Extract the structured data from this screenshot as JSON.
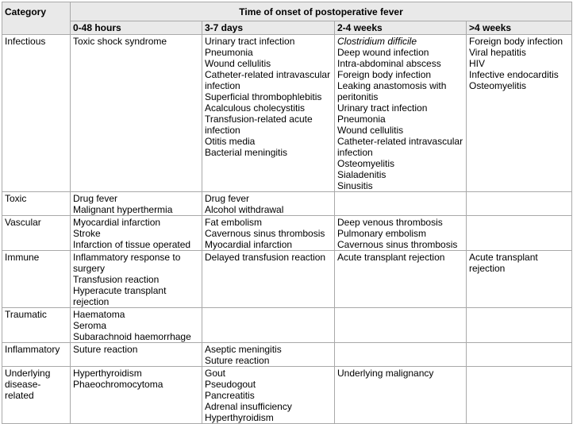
{
  "colors": {
    "header_background": "#e9e9e9",
    "border": "#a9a9a9",
    "body_background": "#ffffff",
    "text": "#000000"
  },
  "table": {
    "category_header": "Category",
    "title": "Time of onset of postoperative fever",
    "time_columns": [
      "0-48 hours",
      "3-7 days",
      "2-4 weeks",
      ">4 weeks"
    ],
    "rows": [
      {
        "category": "Infectious",
        "cells": [
          [
            "Toxic shock syndrome"
          ],
          [
            "Urinary tract infection",
            "Pneumonia",
            "Wound cellulitis",
            "Catheter-related intravascular infection",
            "Superficial thrombophlebitis",
            "Acalculous cholecystitis",
            "Transfusion-related acute infection",
            "Otitis media",
            "Bacterial meningitis"
          ],
          [
            {
              "text": "Clostridium difficile",
              "italic": true
            },
            "Deep wound infection",
            "Intra-abdominal abscess",
            "Foreign body infection",
            "Leaking anastomosis with peritonitis",
            "Urinary tract infection",
            "Pneumonia",
            "Wound cellulitis",
            "Catheter-related intravascular infection",
            "Osteomyelitis",
            "Sialadenitis",
            "Sinusitis"
          ],
          [
            "Foreign body infection",
            "Viral hepatitis",
            "HIV",
            "Infective endocarditis",
            "Osteomyelitis"
          ]
        ]
      },
      {
        "category": "Toxic",
        "cells": [
          [
            "Drug fever",
            "Malignant hyperthermia"
          ],
          [
            "Drug fever",
            "Alcohol withdrawal"
          ],
          [],
          []
        ]
      },
      {
        "category": "Vascular",
        "cells": [
          [
            "Myocardial infarction",
            "Stroke",
            "Infarction of tissue operated"
          ],
          [
            "Fat embolism",
            "Cavernous sinus thrombosis",
            "Myocardial infarction"
          ],
          [
            "Deep venous thrombosis",
            "Pulmonary embolism",
            "Cavernous sinus thrombosis"
          ],
          []
        ]
      },
      {
        "category": "Immune",
        "cells": [
          [
            "Inflammatory response to surgery",
            "Transfusion reaction",
            "Hyperacute transplant rejection"
          ],
          [
            "Delayed transfusion reaction"
          ],
          [
            "Acute transplant rejection"
          ],
          [
            "Acute transplant rejection"
          ]
        ]
      },
      {
        "category": "Traumatic",
        "cells": [
          [
            "Haematoma",
            "Seroma",
            "Subarachnoid haemorrhage"
          ],
          [],
          [],
          []
        ]
      },
      {
        "category": "Inflammatory",
        "cells": [
          [
            "Suture reaction"
          ],
          [
            "Aseptic meningitis",
            "Suture reaction"
          ],
          [],
          []
        ]
      },
      {
        "category": "Underlying disease-related",
        "cells": [
          [
            "Hyperthyroidism",
            "Phaeochromocytoma"
          ],
          [
            "Gout",
            "Pseudogout",
            "Pancreatitis",
            "Adrenal insufficiency",
            "Hyperthyroidism"
          ],
          [
            "Underlying malignancy"
          ],
          []
        ]
      }
    ]
  }
}
